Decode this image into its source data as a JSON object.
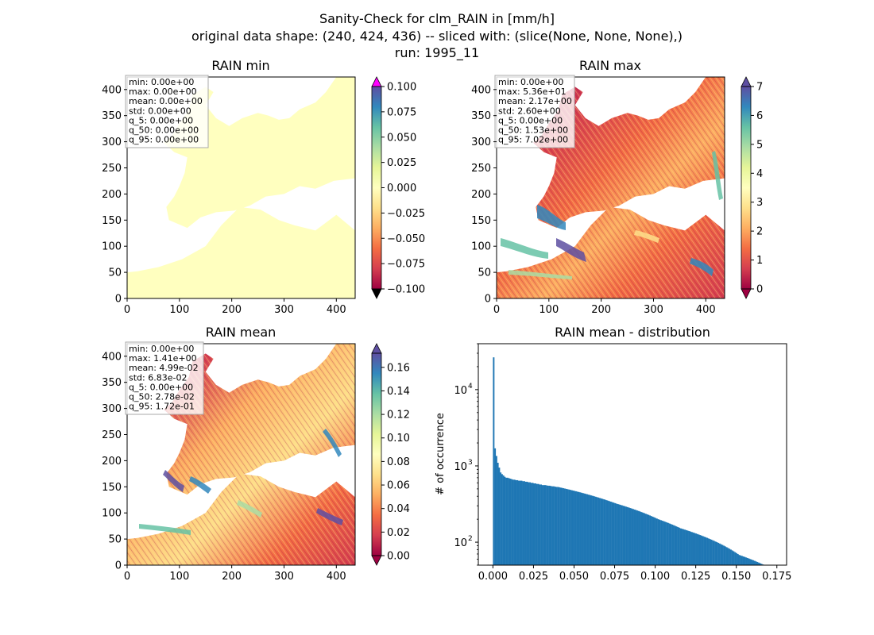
{
  "figure": {
    "title_lines": [
      "Sanity-Check for clm_RAIN in [mm/h]",
      "original data shape: (240, 424, 436) -- sliced with: (slice(None, None, None),)",
      "run: 1995_11"
    ]
  },
  "chart_data": [
    {
      "type": "heatmap",
      "title": "RAIN min",
      "xticks": [
        0,
        100,
        200,
        300,
        400
      ],
      "yticks": [
        0,
        50,
        100,
        150,
        200,
        250,
        300,
        350,
        400
      ],
      "xlim": [
        0,
        436
      ],
      "ylim": [
        0,
        424
      ],
      "colorbar": {
        "ticks": [
          "0.100",
          "0.075",
          "0.050",
          "0.025",
          "0.000",
          "−0.025",
          "−0.050",
          "−0.075",
          "−0.100"
        ],
        "range": [
          -0.1,
          0.1
        ],
        "extend": "both"
      },
      "colormap": "Spectral",
      "stats": [
        "min: 0.00e+00",
        "max: 0.00e+00",
        "mean: 0.00e+00",
        "std: 0.00e+00",
        "q_5: 0.00e+00",
        "q_50: 0.00e+00",
        "q_95: 0.00e+00"
      ]
    },
    {
      "type": "heatmap",
      "title": "RAIN max",
      "xticks": [
        0,
        100,
        200,
        300,
        400
      ],
      "yticks": [
        0,
        50,
        100,
        150,
        200,
        250,
        300,
        350,
        400
      ],
      "xlim": [
        0,
        436
      ],
      "ylim": [
        0,
        424
      ],
      "colorbar": {
        "ticks": [
          "7",
          "6",
          "5",
          "4",
          "3",
          "2",
          "1",
          "0"
        ],
        "range": [
          0,
          7
        ],
        "extend": "both"
      },
      "colormap": "Spectral",
      "stats": [
        "min: 0.00e+00",
        "max: 5.36e+01",
        "mean: 2.17e+00",
        "std: 2.60e+00",
        "q_5: 0.00e+00",
        "q_50: 1.53e+00",
        "q_95: 7.02e+00"
      ]
    },
    {
      "type": "heatmap",
      "title": "RAIN mean",
      "xticks": [
        0,
        100,
        200,
        300,
        400
      ],
      "yticks": [
        0,
        50,
        100,
        150,
        200,
        250,
        300,
        350,
        400
      ],
      "xlim": [
        0,
        436
      ],
      "ylim": [
        0,
        424
      ],
      "colorbar": {
        "ticks": [
          "0.16",
          "0.14",
          "0.12",
          "0.10",
          "0.08",
          "0.06",
          "0.04",
          "0.02",
          "0.00"
        ],
        "range": [
          0,
          0.172
        ],
        "extend": "both"
      },
      "colormap": "Spectral",
      "stats": [
        "min: 0.00e+00",
        "max: 1.41e+00",
        "mean: 4.99e-02",
        "std: 6.83e-02",
        "q_5: 0.00e+00",
        "q_50: 2.78e-02",
        "q_95: 1.72e-01"
      ]
    },
    {
      "type": "bar",
      "title": "RAIN mean - distribution",
      "ylabel": "# of occurrence",
      "yscale": "log",
      "xlim": [
        -0.009,
        0.181
      ],
      "ylim": [
        50,
        40000
      ],
      "xticks": [
        "0.000",
        "0.025",
        "0.050",
        "0.075",
        "0.100",
        "0.125",
        "0.150",
        "0.175"
      ],
      "yticks": [
        {
          "base": "10",
          "exp": "2",
          "value": 100
        },
        {
          "base": "10",
          "exp": "3",
          "value": 1000
        },
        {
          "base": "10",
          "exp": "4",
          "value": 10000
        }
      ],
      "color": "#1f77b4",
      "bins": {
        "start": 0.0,
        "width": 0.00086,
        "counts": [
          26500,
          1700,
          1350,
          1100,
          950,
          820,
          780,
          750,
          720,
          700,
          700,
          690,
          680,
          670,
          660,
          660,
          650,
          650,
          640,
          640,
          640,
          630,
          630,
          620,
          620,
          610,
          610,
          600,
          600,
          590,
          590,
          580,
          580,
          570,
          570,
          560,
          560,
          560,
          555,
          550,
          550,
          545,
          540,
          540,
          535,
          530,
          530,
          525,
          520,
          515,
          510,
          505,
          500,
          495,
          490,
          485,
          480,
          475,
          470,
          465,
          460,
          455,
          450,
          445,
          440,
          435,
          430,
          425,
          420,
          415,
          410,
          405,
          400,
          395,
          390,
          385,
          380,
          375,
          370,
          365,
          360,
          355,
          350,
          345,
          340,
          335,
          330,
          325,
          320,
          316,
          312,
          308,
          304,
          300,
          296,
          292,
          288,
          284,
          280,
          276,
          272,
          268,
          264,
          260,
          256,
          252,
          248,
          244,
          240,
          236,
          232,
          228,
          224,
          220,
          216,
          212,
          208,
          204,
          200,
          197,
          194,
          191,
          188,
          185,
          182,
          179,
          176,
          173,
          170,
          167,
          164,
          161,
          158,
          155,
          152,
          150,
          148,
          146,
          144,
          142,
          140,
          138,
          136,
          134,
          132,
          130,
          128,
          126,
          124,
          122,
          120,
          118,
          116,
          114,
          112,
          110,
          108,
          106,
          104,
          102,
          100,
          98,
          96,
          94,
          92,
          90,
          88,
          86,
          84,
          82,
          80,
          78,
          76,
          74,
          72,
          70,
          68,
          67,
          66,
          65,
          64,
          63,
          62,
          61,
          60,
          59,
          58,
          57,
          56,
          55,
          54,
          53,
          52,
          51,
          50,
          50,
          50,
          50,
          50,
          50
        ]
      }
    }
  ]
}
